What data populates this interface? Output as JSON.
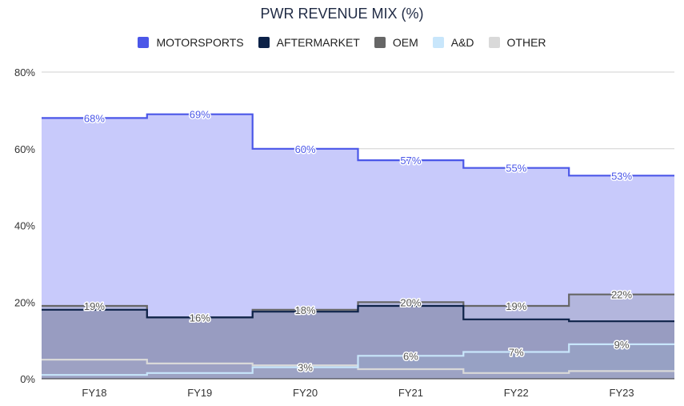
{
  "chart_data": {
    "type": "area",
    "subtype": "stepped-stacked-area",
    "title": "PWR REVENUE MIX (%)",
    "xlabel": "",
    "ylabel": "",
    "ylim": [
      0,
      80
    ],
    "yticks": [
      0,
      20,
      40,
      60,
      80
    ],
    "ytick_labels": [
      "0%",
      "20%",
      "40%",
      "60%",
      "80%"
    ],
    "grid": true,
    "legend_position": "top",
    "categories": [
      "FY18",
      "FY19",
      "FY20",
      "FY21",
      "FY22",
      "FY23"
    ],
    "series": [
      {
        "name": "MOTORSPORTS",
        "color": "#4b57e8",
        "fill": "#c8cafb",
        "cumulative": [
          68,
          69,
          60,
          57,
          55,
          53
        ],
        "labels": [
          "68%",
          "69%",
          "60%",
          "57%",
          "55%",
          "53%"
        ]
      },
      {
        "name": "AFTERMARKET",
        "color": "#0d2248",
        "fill": "#8286aa",
        "cumulative": [
          18,
          16,
          17.5,
          19,
          15.5,
          15
        ],
        "labels": null
      },
      {
        "name": "OEM",
        "color": "#666666",
        "fill": "#a3a6c4",
        "cumulative": [
          19,
          16,
          18,
          20,
          19,
          22
        ],
        "labels": [
          "19%",
          "16%",
          "18%",
          "20%",
          "19%",
          "22%"
        ]
      },
      {
        "name": "A&D",
        "color": "#c8e6fb",
        "fill": "#97a6c6",
        "cumulative": [
          1,
          1.5,
          3,
          6,
          7,
          9
        ],
        "labels": [
          "",
          "",
          "3%",
          "6%",
          "7%",
          "9%"
        ]
      },
      {
        "name": "OTHER",
        "color": "#d9d9d9",
        "fill": "#a3a6c4",
        "cumulative": [
          5,
          4,
          3.5,
          2.5,
          1.5,
          2
        ],
        "labels": null
      }
    ]
  }
}
